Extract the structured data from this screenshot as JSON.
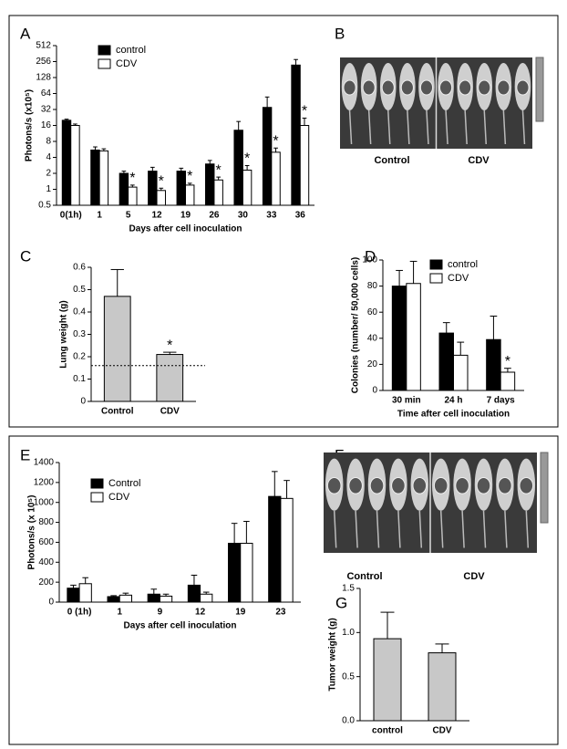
{
  "chart_data": [
    {
      "type": "bar",
      "panel": "A",
      "ylabel": "Photons/s (x10⁵)",
      "xlabel": "Days after cell inoculation",
      "categories": [
        "0(1h)",
        "1",
        "5",
        "12",
        "19",
        "26",
        "30",
        "33",
        "36"
      ],
      "yscale": "log",
      "ylim": [
        0.5,
        512
      ],
      "yticks": [
        0.5,
        1,
        2,
        4,
        8,
        16,
        32,
        64,
        128,
        256,
        512
      ],
      "series": [
        {
          "name": "control",
          "color": "#000000",
          "values": [
            20,
            5.5,
            2,
            2.2,
            2.2,
            3,
            13,
            35,
            220
          ],
          "errors": [
            1,
            0.8,
            0.2,
            0.4,
            0.3,
            0.5,
            6,
            20,
            60
          ]
        },
        {
          "name": "CDV",
          "color": "#ffffff",
          "values": [
            16,
            5.3,
            1.1,
            0.95,
            1.2,
            1.5,
            2.3,
            5,
            16
          ],
          "errors": [
            1,
            0.5,
            0.1,
            0.1,
            0.1,
            0.2,
            0.5,
            1,
            6
          ],
          "markers": [
            null,
            null,
            "*",
            "*",
            "*",
            "*",
            "*",
            "*",
            "*"
          ]
        }
      ]
    },
    {
      "type": "image",
      "panel": "B",
      "captions": [
        "Control",
        "CDV"
      ]
    },
    {
      "type": "bar",
      "panel": "C",
      "ylabel": "Lung weight (g)",
      "categories": [
        "Control",
        "CDV"
      ],
      "color": "#c8c8c8",
      "values": [
        0.47,
        0.21
      ],
      "errors": [
        0.12,
        0.01
      ],
      "markers": [
        null,
        "*"
      ],
      "ylim": [
        0,
        0.6
      ],
      "yticks": [
        0,
        0.1,
        0.2,
        0.3,
        0.4,
        0.5,
        0.6
      ],
      "reference_line": 0.16
    },
    {
      "type": "bar",
      "panel": "D",
      "ylabel": "Colonies (number/ 50,000 cells)",
      "xlabel": "Time after cell inoculation",
      "categories": [
        "30 min",
        "24 h",
        "7 days"
      ],
      "ylim": [
        0,
        100
      ],
      "yticks": [
        0,
        20,
        40,
        60,
        80,
        100
      ],
      "series": [
        {
          "name": "control",
          "color": "#000000",
          "values": [
            80,
            44,
            39
          ],
          "errors": [
            12,
            8,
            18
          ]
        },
        {
          "name": "CDV",
          "color": "#ffffff",
          "values": [
            82,
            27,
            14
          ],
          "errors": [
            17,
            10,
            3
          ],
          "markers": [
            null,
            null,
            "*"
          ]
        }
      ]
    },
    {
      "type": "bar",
      "panel": "E",
      "ylabel": "Photons/s (x 10⁵)",
      "xlabel": "Days after cell inoculation",
      "categories": [
        "0 (1h)",
        "1",
        "9",
        "12",
        "19",
        "23"
      ],
      "ylim": [
        0,
        1400
      ],
      "yticks": [
        0,
        200,
        400,
        600,
        800,
        1000,
        1200,
        1400
      ],
      "series": [
        {
          "name": "Control",
          "color": "#000000",
          "values": [
            140,
            55,
            80,
            170,
            590,
            1060
          ],
          "errors": [
            30,
            10,
            50,
            100,
            200,
            250
          ]
        },
        {
          "name": "CDV",
          "color": "#ffffff",
          "values": [
            185,
            70,
            60,
            80,
            590,
            1040
          ],
          "errors": [
            60,
            20,
            20,
            20,
            220,
            180
          ]
        }
      ]
    },
    {
      "type": "image",
      "panel": "F",
      "captions": [
        "Control",
        "CDV"
      ]
    },
    {
      "type": "bar",
      "panel": "G",
      "ylabel": "Tumor weight (g)",
      "categories": [
        "control",
        "CDV"
      ],
      "color": "#c8c8c8",
      "values": [
        0.93,
        0.77
      ],
      "errors": [
        0.3,
        0.1
      ],
      "ylim": [
        0,
        1.5
      ],
      "yticks": [
        {
          "value": 0,
          "label": "0.0"
        },
        {
          "value": 0.5,
          "label": "0.5"
        },
        {
          "value": 1,
          "label": "1.0"
        },
        {
          "value": 1.5,
          "label": "1.5"
        }
      ]
    }
  ]
}
